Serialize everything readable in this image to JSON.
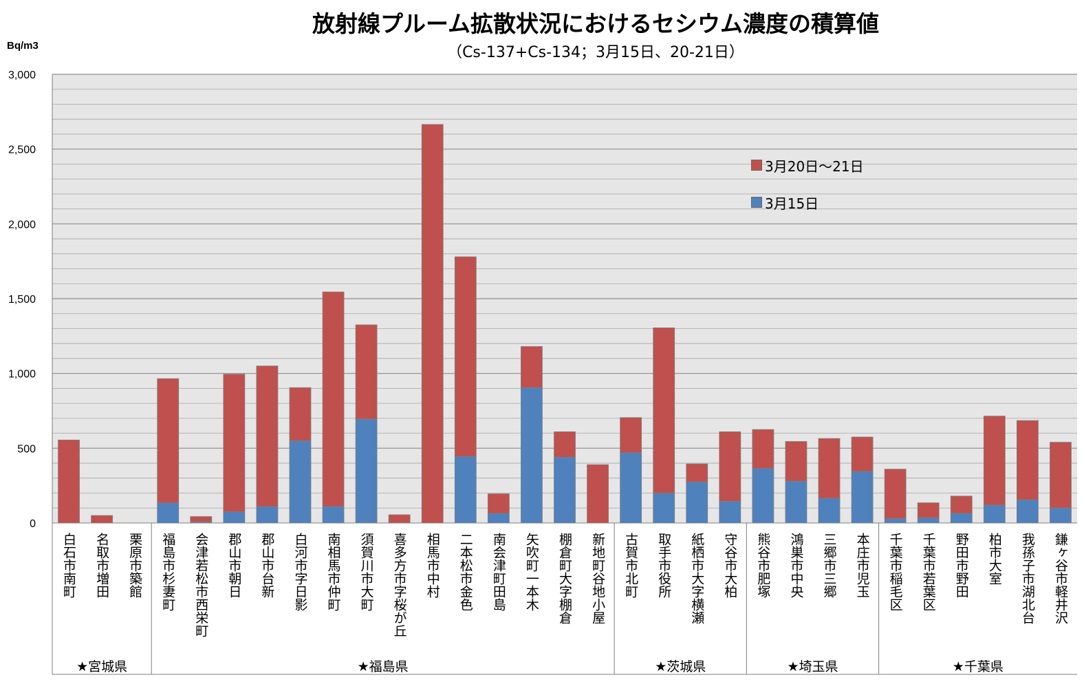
{
  "chart_data": {
    "type": "bar",
    "stacked": true,
    "title": "放射線プルーム拡散状況におけるセシウム濃度の積算値",
    "subtitle": "（Cs-137+Cs-134；3月15日、20-21日）",
    "ylabel": "Bq/m3",
    "ylim": [
      0,
      3000
    ],
    "yticks": [
      "0",
      "500",
      "1,000",
      "1,500",
      "2,000",
      "2,500",
      "3,000"
    ],
    "grid": true,
    "legend_position": "upper-right inside plot",
    "categories": [
      "白石市南町",
      "名取市増田",
      "栗原市築館",
      "福島市杉妻町",
      "会津若松市西栄町",
      "郡山市朝日",
      "郡山市台新",
      "白河市字日影",
      "南相馬市仲町",
      "須賀川市大町",
      "喜多方市字桜が丘",
      "相馬市中村",
      "二本松市金色",
      "南会津町田島",
      "矢吹町一本木",
      "棚倉町大字棚倉",
      "新地町谷地小屋",
      "古賀市北町",
      "取手市役所",
      "紙栖市大字横瀬",
      "守谷市大柏",
      "熊谷市肥塚",
      "鴻巣市中央",
      "三郷市三郷",
      "本庄市児玉",
      "千葉市稲毛区",
      "千葉市若葉区",
      "野田市野田",
      "柏市大室",
      "我孫子市湖北台",
      "鎌ヶ谷市軽井沢"
    ],
    "groups": [
      {
        "label": "★宮城県",
        "count": 3
      },
      {
        "label": "★福島県",
        "count": 14
      },
      {
        "label": "★茨城県",
        "count": 4
      },
      {
        "label": "★埼玉県",
        "count": 4
      },
      {
        "label": "★千葉県",
        "count": 6
      }
    ],
    "series": [
      {
        "name": "3月15日",
        "color": "#4f81bd",
        "values": [
          0,
          0,
          0,
          135,
          8,
          75,
          110,
          550,
          110,
          695,
          0,
          0,
          445,
          65,
          905,
          440,
          0,
          470,
          200,
          275,
          145,
          365,
          280,
          165,
          345,
          30,
          35,
          65,
          120,
          155,
          100
        ]
      },
      {
        "name": "3月20日～21日",
        "color": "#c0504d",
        "values": [
          555,
          50,
          0,
          830,
          35,
          920,
          940,
          355,
          1435,
          630,
          55,
          2665,
          1335,
          130,
          275,
          170,
          390,
          235,
          1105,
          120,
          465,
          260,
          265,
          400,
          230,
          330,
          100,
          115,
          595,
          530,
          440
        ]
      }
    ]
  }
}
